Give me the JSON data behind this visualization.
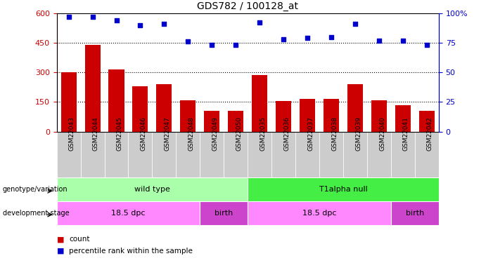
{
  "title": "GDS782 / 100128_at",
  "samples": [
    "GSM22043",
    "GSM22044",
    "GSM22045",
    "GSM22046",
    "GSM22047",
    "GSM22048",
    "GSM22049",
    "GSM22050",
    "GSM22035",
    "GSM22036",
    "GSM22037",
    "GSM22038",
    "GSM22039",
    "GSM22040",
    "GSM22041",
    "GSM22042"
  ],
  "counts": [
    300,
    440,
    315,
    230,
    240,
    160,
    105,
    105,
    285,
    155,
    165,
    165,
    240,
    160,
    135,
    105
  ],
  "percentiles": [
    97,
    97,
    94,
    90,
    91,
    76,
    73,
    73,
    92,
    78,
    79,
    80,
    91,
    77,
    77,
    73
  ],
  "bar_color": "#cc0000",
  "dot_color": "#0000cc",
  "ylim_left": [
    0,
    600
  ],
  "ylim_right": [
    0,
    100
  ],
  "yticks_left": [
    0,
    150,
    300,
    450,
    600
  ],
  "yticks_right": [
    0,
    25,
    50,
    75,
    100
  ],
  "ytick_labels_right": [
    "0",
    "25",
    "50",
    "75",
    "100%"
  ],
  "grid_values": [
    150,
    300,
    450
  ],
  "background_color": "#ffffff",
  "tick_bg_color": "#cccccc",
  "genotype_groups": [
    {
      "label": "wild type",
      "start": 0,
      "end": 8,
      "color": "#aaffaa"
    },
    {
      "label": "T1alpha null",
      "start": 8,
      "end": 16,
      "color": "#44ee44"
    }
  ],
  "stage_groups": [
    {
      "label": "18.5 dpc",
      "start": 0,
      "end": 6,
      "color": "#ff88ff"
    },
    {
      "label": "birth",
      "start": 6,
      "end": 8,
      "color": "#cc44cc"
    },
    {
      "label": "18.5 dpc",
      "start": 8,
      "end": 14,
      "color": "#ff88ff"
    },
    {
      "label": "birth",
      "start": 14,
      "end": 16,
      "color": "#cc44cc"
    }
  ],
  "legend_count_color": "#cc0000",
  "legend_pct_color": "#0000cc",
  "left_axis_color": "#cc0000",
  "right_axis_color": "#0000cc",
  "label_genotype": "genotype/variation",
  "label_stage": "development stage",
  "legend_count_text": "count",
  "legend_pct_text": "percentile rank within the sample"
}
